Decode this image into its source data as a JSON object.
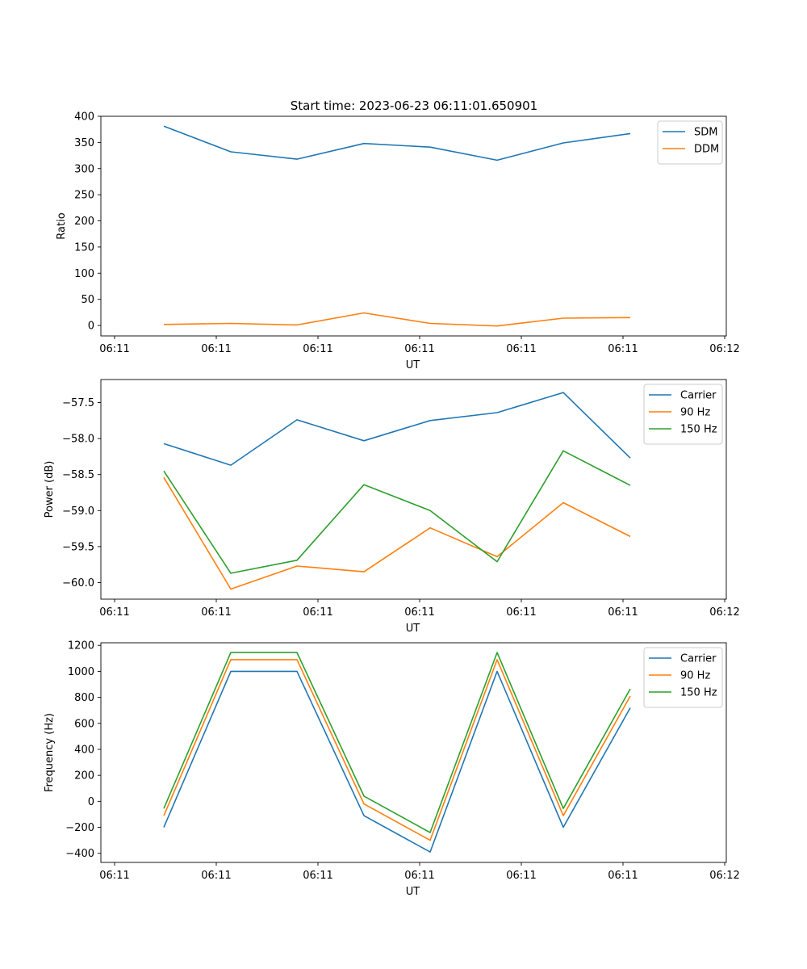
{
  "title": "Start time: 2023-06-23 06:11:01.650901",
  "colors": {
    "blue": "#1f77b4",
    "orange": "#ff7f0e",
    "green": "#2ca02c"
  },
  "chart_data": [
    {
      "type": "line",
      "xlabel": "UT",
      "ylabel": "Ratio",
      "xticks": [
        "06:11",
        "06:11",
        "06:11",
        "06:11",
        "06:11",
        "06:11",
        "06:12"
      ],
      "yticks": [
        0,
        50,
        100,
        150,
        200,
        250,
        300,
        350,
        400
      ],
      "ylim": [
        -20,
        400
      ],
      "legend": "top-right",
      "series": [
        {
          "name": "SDM",
          "color": "#1f77b4",
          "values": [
            381,
            332,
            318,
            348,
            341,
            316,
            349,
            367
          ]
        },
        {
          "name": "DDM",
          "color": "#ff7f0e",
          "values": [
            2,
            4,
            1,
            24,
            4,
            -1,
            14,
            15
          ]
        }
      ]
    },
    {
      "type": "line",
      "xlabel": "UT",
      "ylabel": "Power (dB)",
      "xticks": [
        "06:11",
        "06:11",
        "06:11",
        "06:11",
        "06:11",
        "06:11",
        "06:12"
      ],
      "yticks": [
        -57.5,
        -58.0,
        -58.5,
        -59.0,
        -59.5,
        -60.0
      ],
      "ylim": [
        -60.23,
        -57.18
      ],
      "legend": "top-right",
      "series": [
        {
          "name": "Carrier",
          "color": "#1f77b4",
          "values": [
            -58.07,
            -58.37,
            -57.74,
            -58.03,
            -57.75,
            -57.64,
            -57.36,
            -58.27
          ]
        },
        {
          "name": "90 Hz",
          "color": "#ff7f0e",
          "values": [
            -58.54,
            -60.09,
            -59.77,
            -59.85,
            -59.24,
            -59.64,
            -58.89,
            -59.36
          ]
        },
        {
          "name": "150 Hz",
          "color": "#2ca02c",
          "values": [
            -58.45,
            -59.87,
            -59.69,
            -58.64,
            -59.0,
            -59.71,
            -58.17,
            -58.65
          ]
        }
      ]
    },
    {
      "type": "line",
      "xlabel": "UT",
      "ylabel": "Frequency (Hz)",
      "xticks": [
        "06:11",
        "06:11",
        "06:11",
        "06:11",
        "06:11",
        "06:11",
        "06:12"
      ],
      "yticks": [
        -400,
        -200,
        0,
        200,
        400,
        600,
        800,
        1000,
        1200
      ],
      "ylim": [
        -470,
        1220
      ],
      "legend": "top-right",
      "series": [
        {
          "name": "Carrier",
          "color": "#1f77b4",
          "values": [
            -200,
            1000,
            1000,
            -110,
            -390,
            1000,
            -200,
            720
          ]
        },
        {
          "name": "90 Hz",
          "color": "#ff7f0e",
          "values": [
            -110,
            1090,
            1090,
            -20,
            -300,
            1090,
            -110,
            810
          ]
        },
        {
          "name": "150 Hz",
          "color": "#2ca02c",
          "values": [
            -55,
            1145,
            1145,
            40,
            -240,
            1145,
            -55,
            865
          ]
        }
      ]
    }
  ]
}
